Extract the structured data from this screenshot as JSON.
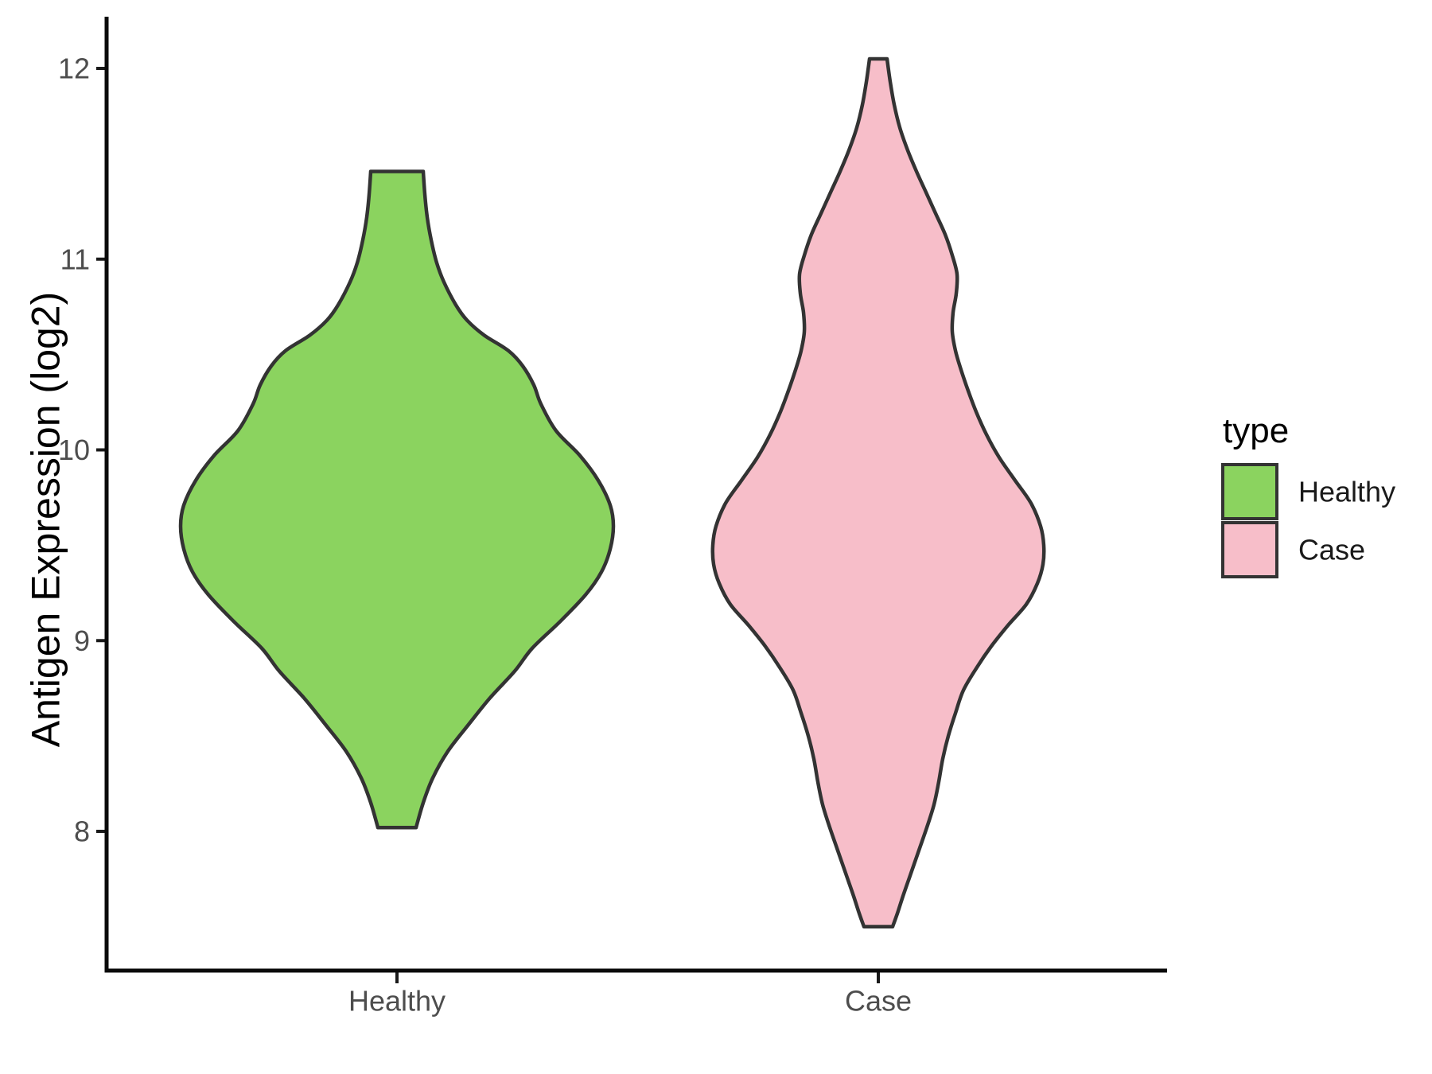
{
  "chart_data": {
    "type": "violin",
    "title": "",
    "xlabel": "",
    "ylabel": "Antigen Expression (log2)",
    "categories": [
      "Healthy",
      "Case"
    ],
    "y_ticks": [
      "8",
      "9",
      "10",
      "11",
      "12"
    ],
    "ylim": [
      7.2,
      12.3
    ],
    "grid": false,
    "background": "#FFFFFF",
    "outline_color": "#333333",
    "axis_line_color": "#0A0A0A",
    "tick_text_color": "#4D4D4D",
    "legend": {
      "title": "type",
      "position": "right",
      "entries": [
        {
          "label": "Healthy",
          "color": "#8BD35F"
        },
        {
          "label": "Case",
          "color": "#F7BEC9"
        }
      ]
    },
    "series": [
      {
        "name": "Healthy",
        "fill": "#8BD35F",
        "value_range": [
          8.02,
          11.46
        ],
        "peak_value": 9.6,
        "profile": [
          [
            11.46,
            33
          ],
          [
            11.34,
            35
          ],
          [
            11.22,
            38
          ],
          [
            11.1,
            43
          ],
          [
            10.98,
            50
          ],
          [
            10.88,
            59
          ],
          [
            10.76,
            74
          ],
          [
            10.68,
            88
          ],
          [
            10.6,
            110
          ],
          [
            10.52,
            140
          ],
          [
            10.44,
            158
          ],
          [
            10.34,
            172
          ],
          [
            10.24,
            181
          ],
          [
            10.1,
            200
          ],
          [
            9.97,
            230
          ],
          [
            9.84,
            253
          ],
          [
            9.71,
            268
          ],
          [
            9.6,
            272
          ],
          [
            9.48,
            268
          ],
          [
            9.36,
            257
          ],
          [
            9.24,
            237
          ],
          [
            9.1,
            205
          ],
          [
            8.96,
            170
          ],
          [
            8.84,
            148
          ],
          [
            8.7,
            117
          ],
          [
            8.56,
            90
          ],
          [
            8.42,
            64
          ],
          [
            8.28,
            45
          ],
          [
            8.15,
            33
          ],
          [
            8.02,
            24
          ]
        ]
      },
      {
        "name": "Case",
        "fill": "#F7BEC9",
        "value_range": [
          7.5,
          12.05
        ],
        "peak_value": 9.45,
        "profile": [
          [
            12.05,
            11
          ],
          [
            11.93,
            15
          ],
          [
            11.81,
            20
          ],
          [
            11.69,
            27
          ],
          [
            11.57,
            37
          ],
          [
            11.46,
            48
          ],
          [
            11.35,
            60
          ],
          [
            11.24,
            72
          ],
          [
            11.13,
            84
          ],
          [
            11.02,
            93
          ],
          [
            10.92,
            99
          ],
          [
            10.82,
            98
          ],
          [
            10.72,
            94
          ],
          [
            10.62,
            93
          ],
          [
            10.52,
            97
          ],
          [
            10.42,
            104
          ],
          [
            10.31,
            113
          ],
          [
            10.2,
            123
          ],
          [
            10.08,
            136
          ],
          [
            9.96,
            152
          ],
          [
            9.84,
            172
          ],
          [
            9.72,
            192
          ],
          [
            9.6,
            204
          ],
          [
            9.5,
            208
          ],
          [
            9.4,
            207
          ],
          [
            9.3,
            200
          ],
          [
            9.19,
            186
          ],
          [
            9.08,
            163
          ],
          [
            8.97,
            142
          ],
          [
            8.86,
            124
          ],
          [
            8.74,
            107
          ],
          [
            8.62,
            97
          ],
          [
            8.5,
            88
          ],
          [
            8.38,
            81
          ],
          [
            8.26,
            76
          ],
          [
            8.14,
            70
          ],
          [
            8.02,
            61
          ],
          [
            7.9,
            51
          ],
          [
            7.78,
            41
          ],
          [
            7.66,
            31
          ],
          [
            7.57,
            24
          ],
          [
            7.5,
            18
          ]
        ]
      }
    ]
  }
}
